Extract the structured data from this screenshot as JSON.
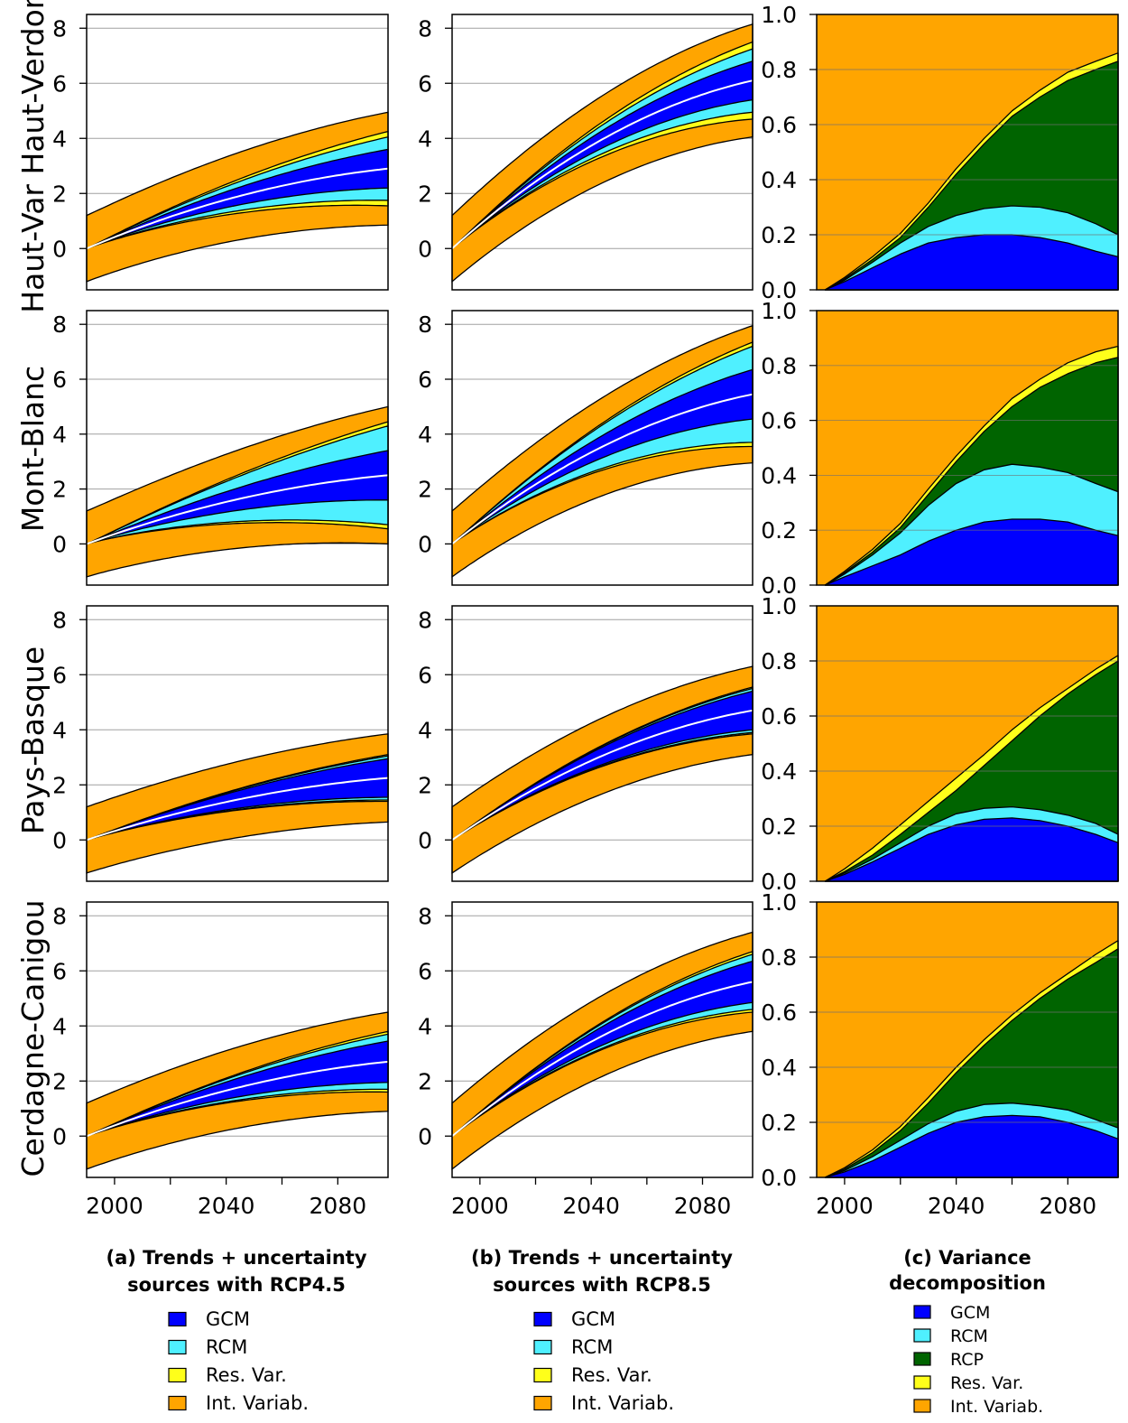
{
  "rows": [
    {
      "label": "Haut-Var Haut-Verdon"
    },
    {
      "label": "Mont-Blanc"
    },
    {
      "label": "Pays-Basque"
    },
    {
      "label": "Cerdagne-Canigou"
    }
  ],
  "captions": {
    "a_line1": "(a) Trends + uncertainty",
    "a_line2": "sources with RCP4.5",
    "b_line1": "(b) Trends + uncertainty",
    "b_line2": "sources with RCP8.5",
    "c_line1": "(c) Variance",
    "c_line2": "decomposition"
  },
  "legend_ab": [
    {
      "label": "GCM",
      "color": "#0000ff"
    },
    {
      "label": "RCM",
      "color": "#4ff0ff"
    },
    {
      "label": "Res. Var.",
      "color": "#ffff1a"
    },
    {
      "label": "Int. Variab.",
      "color": "#ffa500"
    }
  ],
  "legend_c": [
    {
      "label": "GCM",
      "color": "#0000ff"
    },
    {
      "label": "RCM",
      "color": "#4ff0ff"
    },
    {
      "label": "RCP",
      "color": "#006400"
    },
    {
      "label": "Res. Var.",
      "color": "#ffff1a"
    },
    {
      "label": "Int. Variab.",
      "color": "#ffa500"
    }
  ],
  "chart_data": [
    {
      "type": "area",
      "panels": "trend",
      "xlim": [
        1990,
        2098
      ],
      "ylim": [
        -1.5,
        8.5
      ],
      "x_ticks": [
        2000,
        2040,
        2080
      ],
      "y_ticks": [
        0,
        2,
        4,
        6,
        8
      ],
      "grid": true,
      "note": "Trend panels (columns a and b): white mean line with nested symmetric bands; half-widths at end of period (2098) for GCM, RCM, Res. Var., Int. Variab. layers",
      "series": [
        {
          "row": "Haut-Var Haut-Verdon",
          "scenario": "RCP4.5",
          "mean_end": 2.9,
          "half_widths_end": {
            "GCM": 0.7,
            "RCM": 1.15,
            "Res. Var.": 1.35,
            "Int. Variab.": 2.05
          }
        },
        {
          "row": "Haut-Var Haut-Verdon",
          "scenario": "RCP8.5",
          "mean_end": 6.1,
          "half_widths_end": {
            "GCM": 0.7,
            "RCM": 1.15,
            "Res. Var.": 1.4,
            "Int. Variab.": 2.05
          }
        },
        {
          "row": "Mont-Blanc",
          "scenario": "RCP4.5",
          "mean_end": 2.5,
          "half_widths_end": {
            "GCM": 0.9,
            "RCM": 1.8,
            "Res. Var.": 1.95,
            "Int. Variab.": 2.5
          }
        },
        {
          "row": "Mont-Blanc",
          "scenario": "RCP8.5",
          "mean_end": 5.45,
          "half_widths_end": {
            "GCM": 0.9,
            "RCM": 1.75,
            "Res. Var.": 1.9,
            "Int. Variab.": 2.5
          }
        },
        {
          "row": "Pays-Basque",
          "scenario": "RCP4.5",
          "mean_end": 2.25,
          "half_widths_end": {
            "GCM": 0.7,
            "RCM": 0.8,
            "Res. Var.": 0.85,
            "Int. Variab.": 1.6
          }
        },
        {
          "row": "Pays-Basque",
          "scenario": "RCP8.5",
          "mean_end": 4.7,
          "half_widths_end": {
            "GCM": 0.7,
            "RCM": 0.8,
            "Res. Var.": 0.85,
            "Int. Variab.": 1.6
          }
        },
        {
          "row": "Cerdagne-Canigou",
          "scenario": "RCP4.5",
          "mean_end": 2.7,
          "half_widths_end": {
            "GCM": 0.75,
            "RCM": 1.0,
            "Res. Var.": 1.1,
            "Int. Variab.": 1.8
          }
        },
        {
          "row": "Cerdagne-Canigou",
          "scenario": "RCP8.5",
          "mean_end": 5.6,
          "half_widths_end": {
            "GCM": 0.75,
            "RCM": 1.0,
            "Res. Var.": 1.1,
            "Int. Variab.": 1.8
          }
        }
      ]
    },
    {
      "type": "area",
      "panels": "variance",
      "xlim": [
        1990,
        2098
      ],
      "ylim": [
        0,
        1
      ],
      "x_ticks": [
        2000,
        2040,
        2080
      ],
      "y_ticks": [
        0.0,
        0.2,
        0.4,
        0.6,
        0.8,
        1.0
      ],
      "grid": true,
      "x": [
        1993,
        2000,
        2010,
        2020,
        2030,
        2040,
        2050,
        2060,
        2070,
        2080,
        2090,
        2098
      ],
      "note": "Cumulative (stacked) upper boundaries; Int. Variab. fills the remainder up to 1.0",
      "series": [
        {
          "row": "Haut-Var Haut-Verdon",
          "GCM": [
            0,
            0.03,
            0.08,
            0.13,
            0.17,
            0.19,
            0.2,
            0.2,
            0.19,
            0.17,
            0.14,
            0.12
          ],
          "RCM": [
            0,
            0.035,
            0.1,
            0.17,
            0.23,
            0.27,
            0.295,
            0.305,
            0.3,
            0.28,
            0.24,
            0.2
          ],
          "RCP": [
            0,
            0.04,
            0.11,
            0.19,
            0.3,
            0.42,
            0.53,
            0.63,
            0.7,
            0.76,
            0.8,
            0.83
          ],
          "Res. Var.": [
            0,
            0.045,
            0.12,
            0.205,
            0.315,
            0.44,
            0.55,
            0.65,
            0.725,
            0.79,
            0.83,
            0.86
          ]
        },
        {
          "row": "Mont-Blanc",
          "GCM": [
            0,
            0.03,
            0.07,
            0.11,
            0.16,
            0.2,
            0.23,
            0.24,
            0.24,
            0.23,
            0.2,
            0.18
          ],
          "RCM": [
            0,
            0.04,
            0.11,
            0.19,
            0.29,
            0.37,
            0.42,
            0.44,
            0.43,
            0.41,
            0.37,
            0.34
          ],
          "RCP": [
            0,
            0.045,
            0.12,
            0.21,
            0.33,
            0.45,
            0.56,
            0.65,
            0.72,
            0.77,
            0.81,
            0.83
          ],
          "Res. Var.": [
            0,
            0.05,
            0.13,
            0.225,
            0.35,
            0.47,
            0.58,
            0.68,
            0.75,
            0.81,
            0.85,
            0.87
          ]
        },
        {
          "row": "Pays-Basque",
          "GCM": [
            0,
            0.025,
            0.07,
            0.12,
            0.17,
            0.205,
            0.225,
            0.23,
            0.22,
            0.2,
            0.17,
            0.14
          ],
          "RCM": [
            0,
            0.03,
            0.08,
            0.14,
            0.2,
            0.245,
            0.265,
            0.27,
            0.26,
            0.24,
            0.21,
            0.17
          ],
          "RCP": [
            0,
            0.035,
            0.095,
            0.17,
            0.25,
            0.33,
            0.42,
            0.51,
            0.6,
            0.68,
            0.75,
            0.8
          ],
          "Res. Var.": [
            0,
            0.045,
            0.12,
            0.205,
            0.29,
            0.375,
            0.46,
            0.55,
            0.63,
            0.7,
            0.77,
            0.82
          ]
        },
        {
          "row": "Cerdagne-Canigou",
          "GCM": [
            0,
            0.02,
            0.06,
            0.11,
            0.16,
            0.2,
            0.22,
            0.225,
            0.22,
            0.2,
            0.17,
            0.14
          ],
          "RCM": [
            0,
            0.025,
            0.075,
            0.135,
            0.195,
            0.24,
            0.265,
            0.27,
            0.26,
            0.245,
            0.21,
            0.18
          ],
          "RCP": [
            0,
            0.03,
            0.09,
            0.17,
            0.27,
            0.38,
            0.48,
            0.57,
            0.65,
            0.72,
            0.78,
            0.83
          ],
          "Res. Var.": [
            0,
            0.035,
            0.1,
            0.185,
            0.29,
            0.4,
            0.5,
            0.59,
            0.67,
            0.74,
            0.81,
            0.86
          ]
        }
      ]
    }
  ]
}
